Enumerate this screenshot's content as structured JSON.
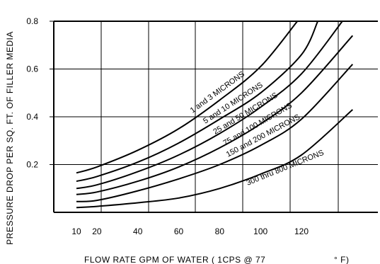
{
  "chart_data": {
    "type": "line",
    "title": "",
    "xlabel": "FLOW RATE GPM OF WATER ( 1CPS @ 77",
    "xlabel_unit": "° F)",
    "ylabel": "PRESSURE DROP PER SQ. FT. OF FILLER MEDIA",
    "xlim": [
      0,
      145
    ],
    "ylim": [
      0,
      0.8
    ],
    "x_ticks": [
      10,
      20,
      40,
      60,
      80,
      100,
      120
    ],
    "y_ticks": [
      0.2,
      0.4,
      0.6,
      0.8
    ],
    "grid": true,
    "legend": "none",
    "series": [
      {
        "name": "1 and 3 MICRONS",
        "x": [
          10,
          20,
          40,
          60,
          80,
          100,
          118
        ],
        "y": [
          0.165,
          0.19,
          0.26,
          0.35,
          0.47,
          0.61,
          0.8
        ]
      },
      {
        "name": "5 and 10 MICRONS",
        "x": [
          10,
          20,
          40,
          60,
          80,
          100,
          120,
          128
        ],
        "y": [
          0.13,
          0.15,
          0.21,
          0.29,
          0.39,
          0.5,
          0.66,
          0.8
        ]
      },
      {
        "name": "25 and 50 MICRONS",
        "x": [
          10,
          20,
          40,
          60,
          80,
          100,
          120,
          140
        ],
        "y": [
          0.1,
          0.115,
          0.17,
          0.24,
          0.33,
          0.44,
          0.58,
          0.8
        ]
      },
      {
        "name": "75 and 100 MICRONS",
        "x": [
          10,
          20,
          40,
          60,
          80,
          100,
          120,
          145
        ],
        "y": [
          0.075,
          0.085,
          0.13,
          0.19,
          0.27,
          0.37,
          0.5,
          0.74
        ]
      },
      {
        "name": "150 and 200 MICRONS",
        "x": [
          10,
          20,
          40,
          60,
          80,
          100,
          120,
          145
        ],
        "y": [
          0.045,
          0.05,
          0.09,
          0.14,
          0.2,
          0.28,
          0.39,
          0.62
        ]
      },
      {
        "name": "300 thru 800 MICRONS",
        "x": [
          10,
          20,
          40,
          60,
          80,
          100,
          120,
          145
        ],
        "y": [
          0.02,
          0.025,
          0.04,
          0.06,
          0.1,
          0.16,
          0.24,
          0.43
        ]
      }
    ]
  }
}
